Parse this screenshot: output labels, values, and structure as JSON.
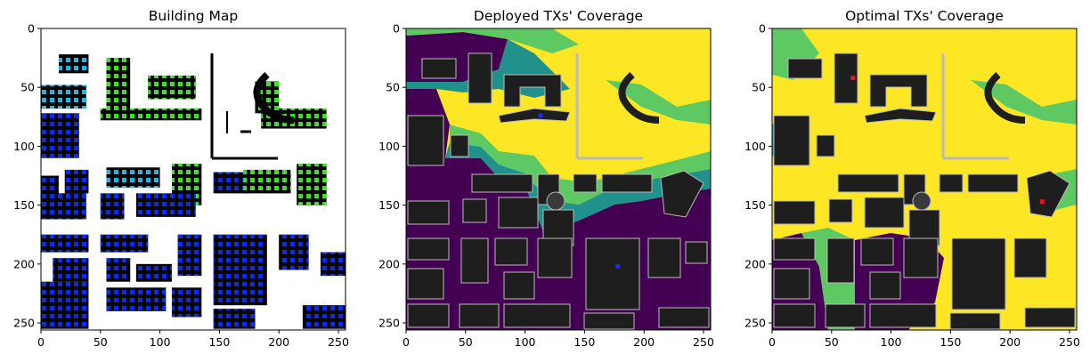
{
  "chart_data": [
    {
      "type": "heatmap",
      "title": "Building Map",
      "xlim": [
        0,
        256
      ],
      "ylim": [
        256,
        0
      ],
      "xticks": [
        0,
        50,
        100,
        150,
        200,
        250
      ],
      "yticks": [
        0,
        50,
        100,
        150,
        200,
        250
      ],
      "xtick_labels": [
        "0",
        "50",
        "100",
        "150",
        "200",
        "250"
      ],
      "ytick_labels": [
        "0",
        "50",
        "100",
        "150",
        "200",
        "250"
      ],
      "background": "#ffffff",
      "marker_colors": {
        "green": "#39e51c",
        "cyan": "#1fb7ea",
        "blue": "#0a2cf0"
      },
      "regions": [
        {
          "x0": 15,
          "y0": 22,
          "x1": 40,
          "y1": 38,
          "marker": "cyan"
        },
        {
          "x0": 55,
          "y0": 25,
          "x1": 75,
          "y1": 68,
          "marker": "green"
        },
        {
          "x0": 90,
          "y0": 40,
          "x1": 130,
          "y1": 60,
          "marker": "green"
        },
        {
          "x0": 180,
          "y0": 45,
          "x1": 200,
          "y1": 72,
          "marker": "green"
        },
        {
          "x0": 185,
          "y0": 68,
          "x1": 240,
          "y1": 85,
          "marker": "green"
        },
        {
          "x0": 0,
          "y0": 48,
          "x1": 38,
          "y1": 68,
          "marker": "cyan"
        },
        {
          "x0": 0,
          "y0": 72,
          "x1": 32,
          "y1": 110,
          "marker": "blue"
        },
        {
          "x0": 50,
          "y0": 68,
          "x1": 135,
          "y1": 78,
          "marker": "green"
        },
        {
          "x0": 0,
          "y0": 125,
          "x1": 15,
          "y1": 145,
          "marker": "blue"
        },
        {
          "x0": 20,
          "y0": 120,
          "x1": 40,
          "y1": 140,
          "marker": "blue"
        },
        {
          "x0": 55,
          "y0": 118,
          "x1": 100,
          "y1": 135,
          "marker": "cyan"
        },
        {
          "x0": 110,
          "y0": 115,
          "x1": 135,
          "y1": 150,
          "marker": "green"
        },
        {
          "x0": 145,
          "y0": 122,
          "x1": 175,
          "y1": 140,
          "marker": "blue"
        },
        {
          "x0": 170,
          "y0": 120,
          "x1": 210,
          "y1": 140,
          "marker": "green"
        },
        {
          "x0": 215,
          "y0": 115,
          "x1": 240,
          "y1": 150,
          "marker": "green"
        },
        {
          "x0": 0,
          "y0": 140,
          "x1": 38,
          "y1": 162,
          "marker": "blue"
        },
        {
          "x0": 50,
          "y0": 140,
          "x1": 70,
          "y1": 162,
          "marker": "blue"
        },
        {
          "x0": 80,
          "y0": 140,
          "x1": 130,
          "y1": 160,
          "marker": "blue"
        },
        {
          "x0": 0,
          "y0": 175,
          "x1": 40,
          "y1": 190,
          "marker": "blue"
        },
        {
          "x0": 50,
          "y0": 175,
          "x1": 90,
          "y1": 190,
          "marker": "blue"
        },
        {
          "x0": 115,
          "y0": 175,
          "x1": 135,
          "y1": 210,
          "marker": "blue"
        },
        {
          "x0": 145,
          "y0": 175,
          "x1": 190,
          "y1": 235,
          "marker": "blue"
        },
        {
          "x0": 200,
          "y0": 175,
          "x1": 225,
          "y1": 205,
          "marker": "blue"
        },
        {
          "x0": 235,
          "y0": 190,
          "x1": 256,
          "y1": 210,
          "marker": "blue"
        },
        {
          "x0": 10,
          "y0": 195,
          "x1": 40,
          "y1": 215,
          "marker": "blue"
        },
        {
          "x0": 55,
          "y0": 195,
          "x1": 75,
          "y1": 215,
          "marker": "blue"
        },
        {
          "x0": 80,
          "y0": 200,
          "x1": 110,
          "y1": 215,
          "marker": "blue"
        },
        {
          "x0": 0,
          "y0": 215,
          "x1": 40,
          "y1": 255,
          "marker": "blue"
        },
        {
          "x0": 55,
          "y0": 220,
          "x1": 105,
          "y1": 240,
          "marker": "blue"
        },
        {
          "x0": 110,
          "y0": 220,
          "x1": 135,
          "y1": 245,
          "marker": "blue"
        },
        {
          "x0": 145,
          "y0": 238,
          "x1": 180,
          "y1": 255,
          "marker": "blue"
        },
        {
          "x0": 220,
          "y0": 235,
          "x1": 256,
          "y1": 255,
          "marker": "blue"
        }
      ]
    },
    {
      "type": "heatmap",
      "title": "Deployed TXs' Coverage",
      "xlim": [
        0,
        256
      ],
      "ylim": [
        256,
        0
      ],
      "xticks": [
        0,
        50,
        100,
        150,
        200,
        250
      ],
      "yticks": [
        0,
        50,
        100,
        150,
        200,
        250
      ],
      "xtick_labels": [
        "0",
        "50",
        "100",
        "150",
        "200",
        "250"
      ],
      "ytick_labels": [
        "0",
        "50",
        "100",
        "150",
        "200",
        "250"
      ],
      "colormap": [
        "#440154",
        "#21918c",
        "#5ec962",
        "#fde725"
      ],
      "transmitters": [
        {
          "x": 113,
          "y": 74,
          "color": "#1b2cf5"
        },
        {
          "x": 178,
          "y": 202,
          "color": "#1b2cf5"
        }
      ]
    },
    {
      "type": "heatmap",
      "title": "Optimal TXs' Coverage",
      "xlim": [
        0,
        256
      ],
      "ylim": [
        256,
        0
      ],
      "xticks": [
        0,
        50,
        100,
        150,
        200,
        250
      ],
      "yticks": [
        0,
        50,
        100,
        150,
        200,
        250
      ],
      "xtick_labels": [
        "0",
        "50",
        "100",
        "150",
        "200",
        "250"
      ],
      "ytick_labels": [
        "0",
        "50",
        "100",
        "150",
        "200",
        "250"
      ],
      "colormap": [
        "#440154",
        "#21918c",
        "#5ec962",
        "#fde725"
      ],
      "transmitters": [
        {
          "x": 68,
          "y": 42,
          "color": "#e8141e"
        },
        {
          "x": 227,
          "y": 147,
          "color": "#e8141e"
        }
      ]
    }
  ]
}
